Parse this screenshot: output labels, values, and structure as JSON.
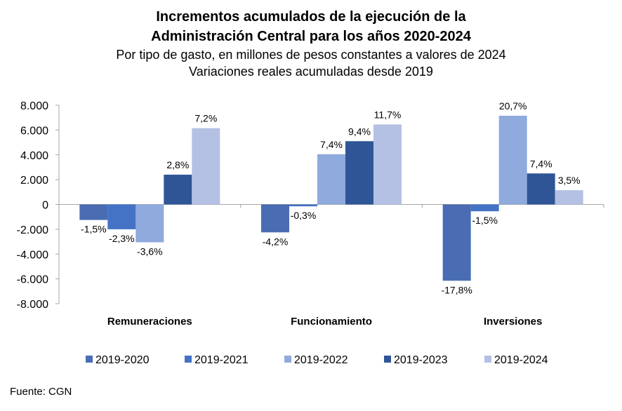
{
  "chart_data": {
    "type": "bar",
    "title": "Incrementos acumulados de la ejecución de la Administración Central para los años 2020-2024",
    "title_line1": "Incrementos acumulados de la ejecución de la",
    "title_line2": "Administración Central para los años 2020-2024",
    "subtitle_line1": "Por tipo de gasto, en millones de pesos constantes a valores de 2024",
    "subtitle_line2": "Variaciones reales acumuladas desde 2019",
    "categories": [
      "Remuneraciones",
      "Funcionamiento",
      "Inversiones"
    ],
    "ylim": [
      -8000,
      8000
    ],
    "yticks": [
      8000,
      6000,
      4000,
      2000,
      0,
      -2000,
      -4000,
      -6000,
      -8000
    ],
    "ytick_labels": [
      "8.000",
      "6.000",
      "4.000",
      "2.000",
      "0",
      "-2.000",
      "-4.000",
      "-6.000",
      "-8.000"
    ],
    "grid": false,
    "legend_position": "bottom",
    "series": [
      {
        "name": "2019-2020",
        "color": "#4a6cb3",
        "values": [
          -1250,
          -2250,
          -6150
        ],
        "labels": [
          "-1,5%",
          "-4,2%",
          "-17,8%"
        ]
      },
      {
        "name": "2019-2021",
        "color": "#4472c4",
        "values": [
          -2000,
          -150,
          -550
        ],
        "labels": [
          "-2,3%",
          "-0,3%",
          "-1,5%"
        ]
      },
      {
        "name": "2019-2022",
        "color": "#8faadc",
        "values": [
          -3050,
          4050,
          7150
        ],
        "labels": [
          "-3,6%",
          "7,4%",
          "20,7%"
        ]
      },
      {
        "name": "2019-2023",
        "color": "#2f5597",
        "values": [
          2400,
          5100,
          2500
        ],
        "labels": [
          "2,8%",
          "9,4%",
          "7,4%"
        ]
      },
      {
        "name": "2019-2024",
        "color": "#b4c1e4",
        "values": [
          6150,
          6450,
          1150
        ],
        "labels": [
          "7,2%",
          "11,7%",
          "3,5%"
        ]
      }
    ]
  },
  "source": "Fuente: CGN"
}
